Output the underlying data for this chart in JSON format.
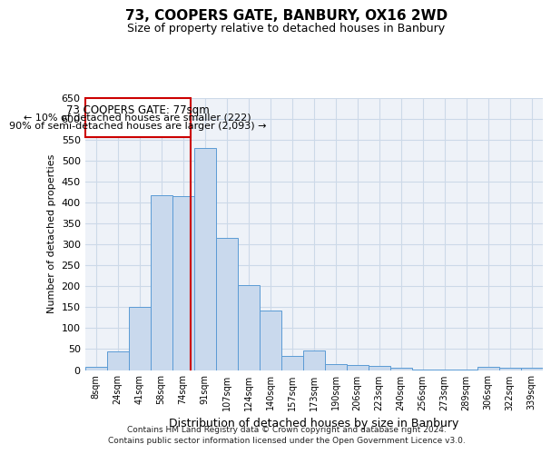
{
  "title1": "73, COOPERS GATE, BANBURY, OX16 2WD",
  "title2": "Size of property relative to detached houses in Banbury",
  "xlabel": "Distribution of detached houses by size in Banbury",
  "ylabel": "Number of detached properties",
  "categories": [
    "8sqm",
    "24sqm",
    "41sqm",
    "58sqm",
    "74sqm",
    "91sqm",
    "107sqm",
    "124sqm",
    "140sqm",
    "157sqm",
    "173sqm",
    "190sqm",
    "206sqm",
    "223sqm",
    "240sqm",
    "256sqm",
    "273sqm",
    "289sqm",
    "306sqm",
    "322sqm",
    "339sqm"
  ],
  "values": [
    8,
    45,
    150,
    418,
    415,
    530,
    315,
    202,
    142,
    33,
    47,
    14,
    13,
    10,
    6,
    2,
    2,
    1,
    7,
    5,
    6
  ],
  "bar_color": "#c9d9ed",
  "bar_edge_color": "#5b9bd5",
  "grid_color": "#ccd9e8",
  "annotation_box_text_line1": "73 COOPERS GATE: 77sqm",
  "annotation_box_text_line2": "← 10% of detached houses are smaller (222)",
  "annotation_box_text_line3": "90% of semi-detached houses are larger (2,093) →",
  "annotation_box_edge_color": "#cc0000",
  "vline_color": "#cc0000",
  "vline_x": 4.35,
  "ylim": [
    0,
    650
  ],
  "yticks": [
    0,
    50,
    100,
    150,
    200,
    250,
    300,
    350,
    400,
    450,
    500,
    550,
    600,
    650
  ],
  "footer1": "Contains HM Land Registry data © Crown copyright and database right 2024.",
  "footer2": "Contains public sector information licensed under the Open Government Licence v3.0.",
  "bg_color": "#eef2f8"
}
